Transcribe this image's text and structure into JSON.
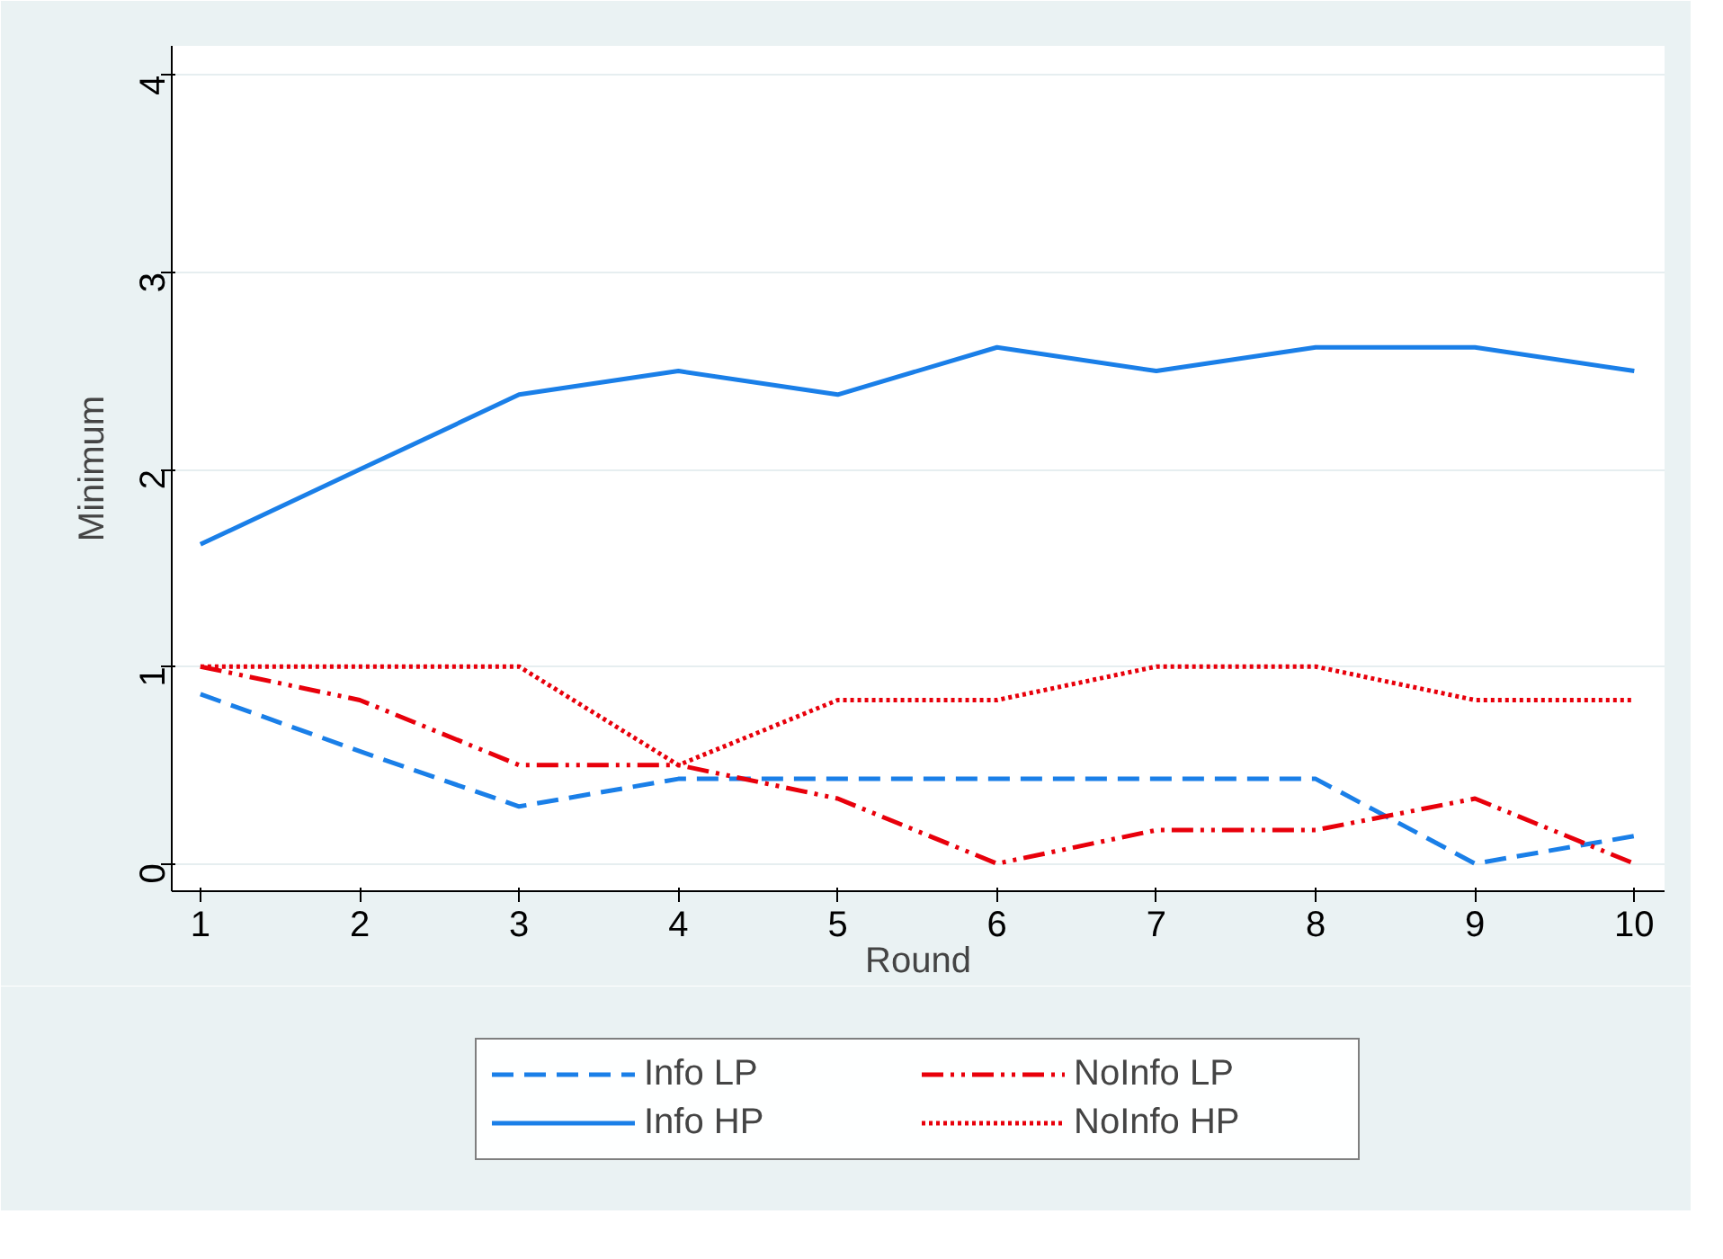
{
  "chart_data": {
    "type": "line",
    "xlabel": "Round",
    "ylabel": "Minimum",
    "x": [
      1,
      2,
      3,
      4,
      5,
      6,
      7,
      8,
      9,
      10
    ],
    "xlim": [
      0.82,
      10.19
    ],
    "xticks": [
      1,
      2,
      3,
      4,
      5,
      6,
      7,
      8,
      9,
      10
    ],
    "ylim": [
      -0.14,
      4.15
    ],
    "yticks": [
      0,
      1,
      2,
      3,
      4
    ],
    "grid": "y",
    "legend": "bottom",
    "marker": "none",
    "series": [
      {
        "name": "Info LP",
        "color": "#1a7fe8",
        "line_style": "dashed",
        "values": [
          0.86,
          0.57,
          0.29,
          0.43,
          0.43,
          0.43,
          0.43,
          0.43,
          0,
          0.14
        ]
      },
      {
        "name": "Info HP",
        "color": "#1a7fe8",
        "line_style": "solid",
        "values": [
          1.62,
          2,
          2.38,
          2.5,
          2.38,
          2.62,
          2.5,
          2.62,
          2.62,
          2.5
        ]
      },
      {
        "name": "NoInfo LP",
        "color": "#e8000b",
        "line_style": "dashdot",
        "values": [
          1,
          0.83,
          0.5,
          0.5,
          0.33,
          0,
          0.17,
          0.17,
          0.33,
          0
        ]
      },
      {
        "name": "NoInfo HP",
        "color": "#e8000b",
        "line_style": "dotted",
        "values": [
          1,
          1,
          1,
          0.5,
          0.83,
          0.83,
          1,
          1,
          0.83,
          0.83
        ]
      }
    ]
  }
}
